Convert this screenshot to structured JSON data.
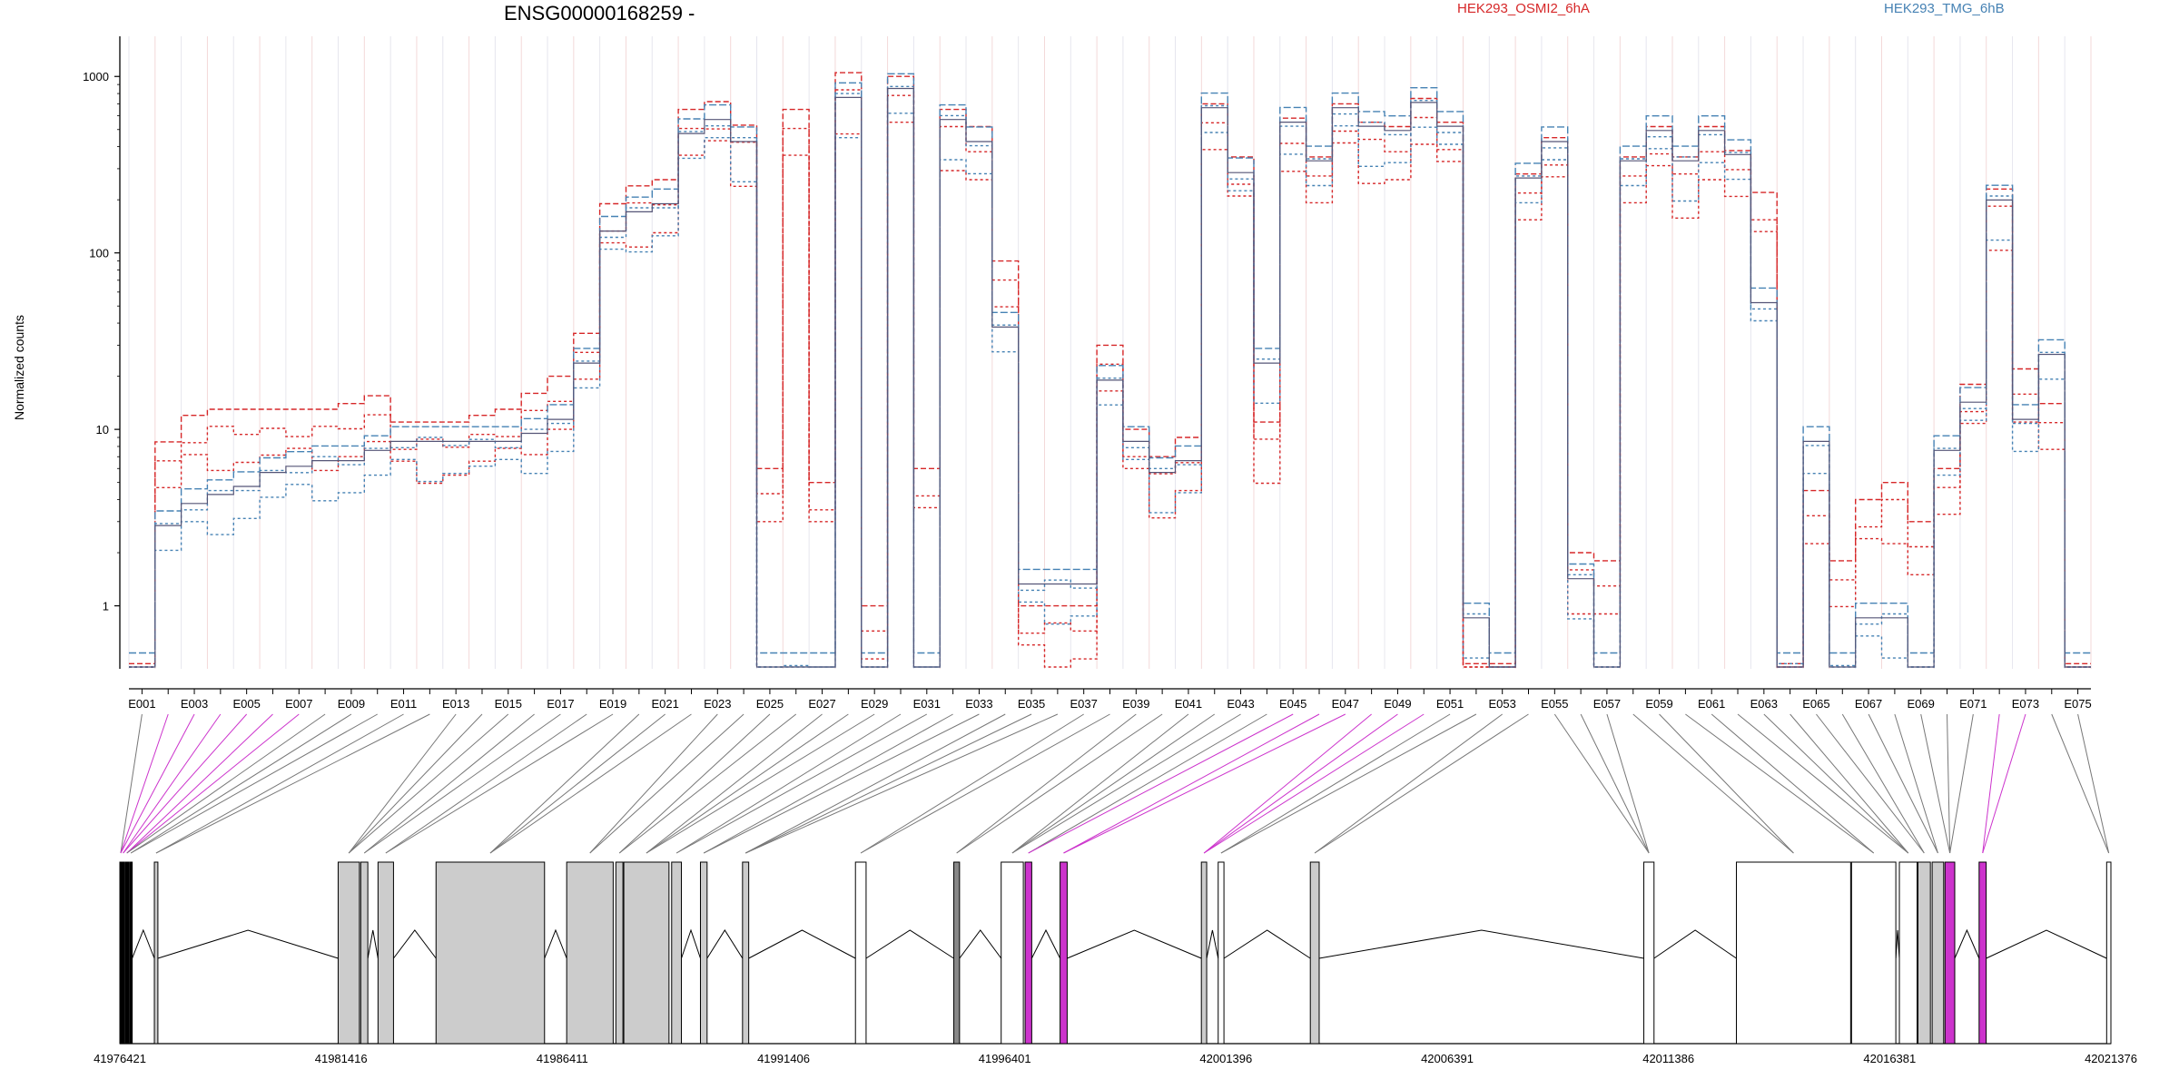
{
  "chart_data": {
    "type": "line",
    "title": "ENSG00000168259 -",
    "ylabel": "Normalized counts",
    "y_scale": "log",
    "ylim": [
      0.45,
      1500
    ],
    "y_ticks": [
      1,
      10,
      100,
      1000
    ],
    "y_tick_labels": [
      "1",
      "10",
      "100",
      "1000"
    ],
    "exon_tick_labels": [
      "E001",
      "E003",
      "E005",
      "E007",
      "E009",
      "E011",
      "E013",
      "E015",
      "E017",
      "E019",
      "E021",
      "E023",
      "E025",
      "E027",
      "E029",
      "E031",
      "E033",
      "E035",
      "E037",
      "E039",
      "E041",
      "E043",
      "E045",
      "E047",
      "E049",
      "E051",
      "E053",
      "E055",
      "E057",
      "E059",
      "E061",
      "E063",
      "E065",
      "E067",
      "E069",
      "E071",
      "E073",
      "E075"
    ],
    "genomic_coordinates": [
      "41976421",
      "41981416",
      "41986411",
      "41991406",
      "41996401",
      "42001396",
      "42006391",
      "42011386",
      "42016381",
      "42021376"
    ],
    "genomic_range": [
      41976421,
      42021376
    ],
    "legend": [
      {
        "name": "HEK293_OSMI2_6hA",
        "color": "#d62728"
      },
      {
        "name": "HEK293_TMG_6hB",
        "color": "#4682b4"
      }
    ],
    "series_profile": {
      "name": "HEK293_OSMI2_6hA",
      "values": [
        0.47,
        8.5,
        12,
        13,
        13,
        13,
        13,
        13,
        14,
        15.5,
        11,
        11,
        11,
        12,
        13,
        16,
        20,
        35,
        190,
        240,
        260,
        650,
        720,
        530,
        6,
        650,
        5,
        1050,
        1,
        1000,
        6,
        650,
        520,
        90,
        1,
        1,
        1,
        30,
        10,
        7,
        9,
        700,
        350,
        11,
        580,
        350,
        700,
        550,
        520,
        750,
        550,
        0.47,
        0.47,
        280,
        450,
        2,
        1.8,
        350,
        520,
        350,
        520,
        380,
        220,
        0.47,
        4.5,
        1.8,
        4,
        5,
        3,
        6,
        18,
        230,
        22,
        14,
        0.47
      ]
    },
    "series_secondary": {
      "name": "HEK293_TMG_6hB",
      "values": [
        0.47,
        3,
        4,
        4.5,
        5,
        6,
        6.5,
        7,
        7,
        8,
        9,
        9,
        9,
        9,
        9,
        10,
        12,
        25,
        140,
        180,
        200,
        500,
        600,
        450,
        0.47,
        0.47,
        0.47,
        800,
        0.47,
        900,
        0.47,
        600,
        450,
        40,
        1.4,
        1.4,
        1.4,
        20,
        9,
        6,
        7,
        700,
        300,
        25,
        580,
        350,
        700,
        550,
        520,
        750,
        550,
        0.9,
        0.47,
        280,
        450,
        1.5,
        0.47,
        350,
        520,
        350,
        520,
        380,
        55,
        0.47,
        9,
        0.47,
        0.9,
        0.9,
        0.47,
        8,
        15,
        210,
        12,
        28,
        0.47
      ]
    },
    "gene_model": {
      "exons": [
        {
          "s": 41976421,
          "e": 41976460,
          "fill": "#000000"
        },
        {
          "s": 41976470,
          "e": 41976520,
          "fill": "#000000"
        },
        {
          "s": 41976540,
          "e": 41976620,
          "fill": "#000000"
        },
        {
          "s": 41976640,
          "e": 41976700,
          "fill": "#000000"
        },
        {
          "s": 41977200,
          "e": 41977280,
          "fill": "#cccccc"
        },
        {
          "s": 41981350,
          "e": 41981830,
          "fill": "#cccccc"
        },
        {
          "s": 41981860,
          "e": 41982020,
          "fill": "#cccccc"
        },
        {
          "s": 41982250,
          "e": 41982600,
          "fill": "#cccccc"
        },
        {
          "s": 41983560,
          "e": 41986010,
          "fill": "#cccccc"
        },
        {
          "s": 41986510,
          "e": 41987560,
          "fill": "#cccccc"
        },
        {
          "s": 41987620,
          "e": 41987780,
          "fill": "#cccccc"
        },
        {
          "s": 41987800,
          "e": 41988820,
          "fill": "#cccccc"
        },
        {
          "s": 41988880,
          "e": 41989100,
          "fill": "#cccccc"
        },
        {
          "s": 41989530,
          "e": 41989680,
          "fill": "#cccccc"
        },
        {
          "s": 41990480,
          "e": 41990620,
          "fill": "#cccccc"
        },
        {
          "s": 41993030,
          "e": 41993270,
          "fill": "#ffffff"
        },
        {
          "s": 41995250,
          "e": 41995380,
          "fill": "#888888"
        },
        {
          "s": 41996320,
          "e": 41996820,
          "fill": "#ffffff"
        },
        {
          "s": 41996860,
          "e": 41997010,
          "fill": "#cc33cc"
        },
        {
          "s": 41997650,
          "e": 41997810,
          "fill": "#cc33cc"
        },
        {
          "s": 42000840,
          "e": 42000960,
          "fill": "#cccccc"
        },
        {
          "s": 42001220,
          "e": 42001350,
          "fill": "#ffffff"
        },
        {
          "s": 42003300,
          "e": 42003500,
          "fill": "#cccccc"
        },
        {
          "s": 42010830,
          "e": 42011060,
          "fill": "#ffffff"
        },
        {
          "s": 42012920,
          "e": 42015500,
          "fill": "#ffffff"
        },
        {
          "s": 42015520,
          "e": 42016520,
          "fill": "#ffffff"
        },
        {
          "s": 42016600,
          "e": 42017000,
          "fill": "#ffffff"
        },
        {
          "s": 42017020,
          "e": 42017300,
          "fill": "#cccccc"
        },
        {
          "s": 42017340,
          "e": 42017600,
          "fill": "#cccccc"
        },
        {
          "s": 42017630,
          "e": 42017850,
          "fill": "#cc33cc"
        },
        {
          "s": 42018400,
          "e": 42018560,
          "fill": "#cc33cc"
        },
        {
          "s": 42021280,
          "e": 42021376,
          "fill": "#ffffff"
        }
      ]
    }
  }
}
